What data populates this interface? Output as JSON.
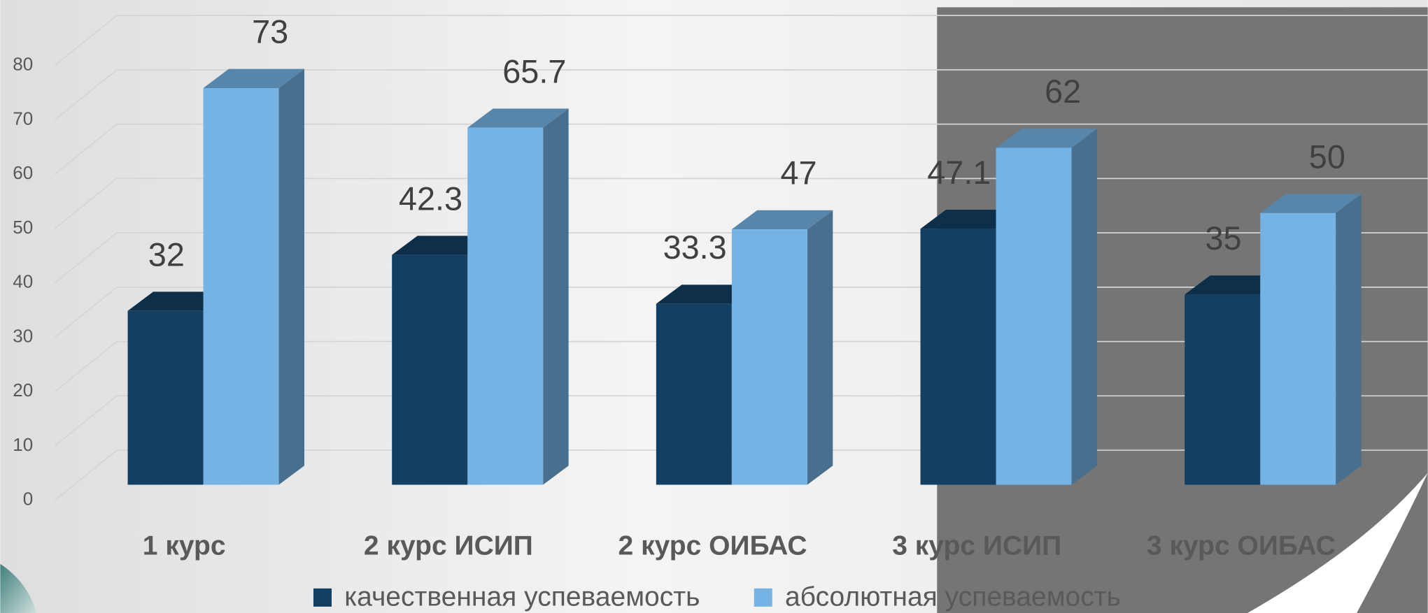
{
  "chart_data": {
    "type": "bar3d",
    "categories": [
      "1 курс",
      "2 курс ИСИП",
      "2 курс ОИБАС",
      "3 курс ИСИП",
      "3 курс ОИБАС"
    ],
    "series": [
      {
        "name": "качественная успеваемость",
        "color": "#133f63",
        "values": [
          32,
          42.3,
          33.3,
          47.1,
          35
        ]
      },
      {
        "name": "абсолютная успеваемость",
        "color": "#74b3e3",
        "values": [
          73,
          65.7,
          47,
          62,
          50
        ]
      }
    ],
    "ylim": [
      0,
      80
    ],
    "yticks": [
      0,
      10,
      20,
      30,
      40,
      50,
      60,
      70,
      80
    ],
    "grid": true,
    "legend": "bottom"
  }
}
